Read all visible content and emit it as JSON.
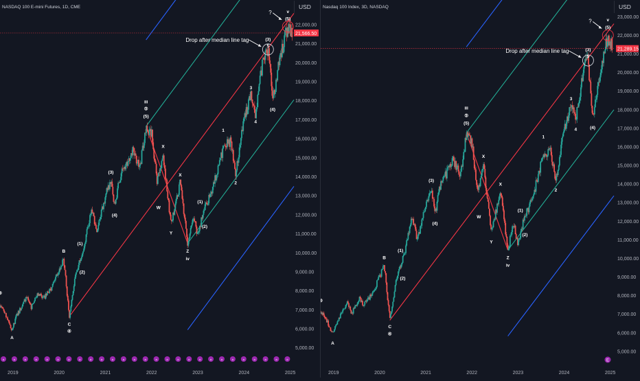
{
  "charts": [
    {
      "title": "NASDAQ 100 E-mini Futures, 1D, CME",
      "currency": "USD",
      "last_price_label": "21,566.50",
      "last_price": 21566.5,
      "annotation": "Drop after median line tag",
      "question_mark": "?"
    },
    {
      "title": "Nasdaq 100 Index, 3D, NASDAQ",
      "currency": "USD",
      "last_price_label": "21,289.15",
      "last_price": 21289.15,
      "annotation": "Drop after median line tag",
      "question_mark": "?"
    }
  ],
  "colors": {
    "background": "#131722",
    "text": "#d1d4dc",
    "candle_up": "#26a69a",
    "candle_down": "#ef5350",
    "median_line": "#f23645",
    "inner_lines": "#22ab94",
    "outer_lines": "#2962ff",
    "event_marker": "#9c27b0",
    "price_tag": "#f23645"
  },
  "chart_data": [
    {
      "type": "candlestick",
      "title": "NASDAQ 100 E-mini Futures, 1D, CME",
      "y_axis_ticks": [
        5000,
        6000,
        7000,
        8000,
        9000,
        10000,
        11000,
        12000,
        13000,
        14000,
        15000,
        16000,
        17000,
        18000,
        19000,
        20000,
        21000,
        22000
      ],
      "y_tick_labels": [
        "5,000.00",
        "6,000.00",
        "7,000.00",
        "8,000.00",
        "9,000.00",
        "10,000.00",
        "11,000.00",
        "12,000.00",
        "13,000.00",
        "14,000.00",
        "15,000.00",
        "16,000.00",
        "17,000.00",
        "18,000.00",
        "19,000.00",
        "20,000.00",
        "21,000.00",
        "22,000.00"
      ],
      "x_axis_ticks": [
        2019,
        2020,
        2021,
        2022,
        2023,
        2024,
        2025
      ],
      "x_tick_labels": [
        "2019",
        "2020",
        "2021",
        "2022",
        "2023",
        "2024",
        "2025"
      ],
      "ylim": [
        4700,
        23300
      ],
      "xlim": [
        2018.72,
        2025.08
      ],
      "price_path": [
        {
          "x": 2018.72,
          "y": 7250
        },
        {
          "x": 2018.82,
          "y": 6900
        },
        {
          "x": 2018.98,
          "y": 5950
        },
        {
          "x": 2019.08,
          "y": 6700
        },
        {
          "x": 2019.3,
          "y": 7650
        },
        {
          "x": 2019.4,
          "y": 7100
        },
        {
          "x": 2019.55,
          "y": 7900
        },
        {
          "x": 2019.65,
          "y": 7550
        },
        {
          "x": 2019.85,
          "y": 8200
        },
        {
          "x": 2020.1,
          "y": 9650
        },
        {
          "x": 2020.22,
          "y": 6650
        },
        {
          "x": 2020.35,
          "y": 8800
        },
        {
          "x": 2020.55,
          "y": 10500
        },
        {
          "x": 2020.7,
          "y": 12300
        },
        {
          "x": 2020.82,
          "y": 11050
        },
        {
          "x": 2021.0,
          "y": 13000
        },
        {
          "x": 2021.12,
          "y": 13850
        },
        {
          "x": 2021.2,
          "y": 12400
        },
        {
          "x": 2021.3,
          "y": 13850
        },
        {
          "x": 2021.45,
          "y": 14700
        },
        {
          "x": 2021.6,
          "y": 15400
        },
        {
          "x": 2021.75,
          "y": 14500
        },
        {
          "x": 2021.88,
          "y": 16650
        },
        {
          "x": 2022.0,
          "y": 16300
        },
        {
          "x": 2022.12,
          "y": 13700
        },
        {
          "x": 2022.25,
          "y": 15200
        },
        {
          "x": 2022.42,
          "y": 11500
        },
        {
          "x": 2022.62,
          "y": 13700
        },
        {
          "x": 2022.78,
          "y": 10500
        },
        {
          "x": 2022.9,
          "y": 12000
        },
        {
          "x": 2023.0,
          "y": 10900
        },
        {
          "x": 2023.15,
          "y": 12400
        },
        {
          "x": 2023.3,
          "y": 13200
        },
        {
          "x": 2023.55,
          "y": 15500
        },
        {
          "x": 2023.72,
          "y": 15900
        },
        {
          "x": 2023.82,
          "y": 14200
        },
        {
          "x": 2024.0,
          "y": 17000
        },
        {
          "x": 2024.15,
          "y": 18300
        },
        {
          "x": 2024.25,
          "y": 17350
        },
        {
          "x": 2024.42,
          "y": 20300
        },
        {
          "x": 2024.52,
          "y": 20700
        },
        {
          "x": 2024.62,
          "y": 18000
        },
        {
          "x": 2024.8,
          "y": 20500
        },
        {
          "x": 2024.95,
          "y": 21900
        },
        {
          "x": 2025.05,
          "y": 21566
        }
      ],
      "wave_labels": [
        {
          "text": "③",
          "x": 2018.72,
          "y": 7900
        },
        {
          "text": "A",
          "x": 2018.98,
          "y": 5550
        },
        {
          "text": "B",
          "x": 2020.1,
          "y": 10100
        },
        {
          "text": "C",
          "x": 2020.22,
          "y": 6250
        },
        {
          "text": "④",
          "x": 2020.22,
          "y": 5900
        },
        {
          "text": "(1)",
          "x": 2020.45,
          "y": 10500
        },
        {
          "text": "(2)",
          "x": 2020.5,
          "y": 9000
        },
        {
          "text": "(3)",
          "x": 2021.12,
          "y": 14250
        },
        {
          "text": "(4)",
          "x": 2021.2,
          "y": 12000
        },
        {
          "text": "iii",
          "x": 2021.88,
          "y": 17950
        },
        {
          "text": "⑤",
          "x": 2021.88,
          "y": 17600
        },
        {
          "text": "(5)",
          "x": 2021.88,
          "y": 17200
        },
        {
          "text": "X",
          "x": 2022.25,
          "y": 15600
        },
        {
          "text": "W",
          "x": 2022.15,
          "y": 12400
        },
        {
          "text": "X",
          "x": 2022.62,
          "y": 14100
        },
        {
          "text": "Y",
          "x": 2022.42,
          "y": 11050
        },
        {
          "text": "Z",
          "x": 2022.78,
          "y": 10100
        },
        {
          "text": "iv",
          "x": 2022.78,
          "y": 9700
        },
        {
          "text": "(1)",
          "x": 2023.05,
          "y": 12700
        },
        {
          "text": "(2)",
          "x": 2023.15,
          "y": 11400
        },
        {
          "text": "1",
          "x": 2023.55,
          "y": 16450
        },
        {
          "text": "2",
          "x": 2023.82,
          "y": 13700
        },
        {
          "text": "3",
          "x": 2024.15,
          "y": 18700
        },
        {
          "text": "4",
          "x": 2024.25,
          "y": 16900
        },
        {
          "text": "(4)",
          "x": 2024.62,
          "y": 17550
        },
        {
          "text": "(3)",
          "x": 2024.52,
          "y": 21250
        },
        {
          "text": "5",
          "x": 2024.52,
          "y": 20900
        },
        {
          "text": "(5)",
          "x": 2024.95,
          "y": 22330
        },
        {
          "text": "v",
          "x": 2024.95,
          "y": 22700
        }
      ],
      "pitchfork": {
        "pivot_high": {
          "x": 2021.88,
          "y": 16650
        },
        "pivot_low": {
          "x": 2022.78,
          "y": 10500
        },
        "median_start": {
          "x": 2020.22,
          "y": 6650
        },
        "median_end": {
          "x": 2025.08,
          "y": 22600
        }
      },
      "annotations": [
        {
          "text": "Drop after median line tag",
          "target": {
            "x": 2024.52,
            "y": 20700
          }
        },
        {
          "text": "?",
          "target": {
            "x": 2024.95,
            "y": 21900
          }
        }
      ]
    },
    {
      "type": "candlestick",
      "title": "Nasdaq 100 Index, 3D, NASDAQ",
      "y_axis_ticks": [
        5000,
        6000,
        7000,
        8000,
        9000,
        10000,
        11000,
        12000,
        13000,
        14000,
        15000,
        16000,
        17000,
        18000,
        19000,
        20000,
        21000,
        22000,
        23000
      ],
      "y_tick_labels": [
        "5,000.00",
        "6,000.00",
        "7,000.00",
        "8,000.00",
        "9,000.00",
        "10,000.00",
        "11,000.00",
        "12,000.00",
        "13,000.00",
        "14,000.00",
        "15,000.00",
        "16,000.00",
        "17,000.00",
        "18,000.00",
        "19,000.00",
        "20,000.00",
        "21,000.00",
        "22,000.00",
        "23,000.00"
      ],
      "x_axis_ticks": [
        2019,
        2020,
        2021,
        2022,
        2023,
        2024,
        2025
      ],
      "x_tick_labels": [
        "2019",
        "2020",
        "2021",
        "2022",
        "2023",
        "2024",
        "2025"
      ],
      "ylim": [
        4700,
        23900
      ],
      "xlim": [
        2018.72,
        2025.08
      ],
      "price_path": [
        {
          "x": 2018.72,
          "y": 7150
        },
        {
          "x": 2018.82,
          "y": 6850
        },
        {
          "x": 2018.98,
          "y": 5900
        },
        {
          "x": 2019.08,
          "y": 6650
        },
        {
          "x": 2019.3,
          "y": 7600
        },
        {
          "x": 2019.4,
          "y": 7050
        },
        {
          "x": 2019.55,
          "y": 7850
        },
        {
          "x": 2019.65,
          "y": 7500
        },
        {
          "x": 2019.85,
          "y": 8150
        },
        {
          "x": 2020.1,
          "y": 9600
        },
        {
          "x": 2020.22,
          "y": 6750
        },
        {
          "x": 2020.35,
          "y": 8700
        },
        {
          "x": 2020.55,
          "y": 10400
        },
        {
          "x": 2020.7,
          "y": 12200
        },
        {
          "x": 2020.82,
          "y": 11000
        },
        {
          "x": 2021.0,
          "y": 12900
        },
        {
          "x": 2021.12,
          "y": 13800
        },
        {
          "x": 2021.2,
          "y": 12300
        },
        {
          "x": 2021.3,
          "y": 13800
        },
        {
          "x": 2021.45,
          "y": 14600
        },
        {
          "x": 2021.6,
          "y": 15300
        },
        {
          "x": 2021.75,
          "y": 14400
        },
        {
          "x": 2021.88,
          "y": 16750
        },
        {
          "x": 2022.0,
          "y": 16200
        },
        {
          "x": 2022.12,
          "y": 13500
        },
        {
          "x": 2022.25,
          "y": 15100
        },
        {
          "x": 2022.42,
          "y": 11350
        },
        {
          "x": 2022.62,
          "y": 13600
        },
        {
          "x": 2022.78,
          "y": 10450
        },
        {
          "x": 2022.9,
          "y": 11900
        },
        {
          "x": 2023.0,
          "y": 10800
        },
        {
          "x": 2023.15,
          "y": 12300
        },
        {
          "x": 2023.3,
          "y": 13100
        },
        {
          "x": 2023.55,
          "y": 15600
        },
        {
          "x": 2023.72,
          "y": 15700
        },
        {
          "x": 2023.82,
          "y": 14200
        },
        {
          "x": 2024.0,
          "y": 17000
        },
        {
          "x": 2024.15,
          "y": 18200
        },
        {
          "x": 2024.25,
          "y": 17400
        },
        {
          "x": 2024.42,
          "y": 20200
        },
        {
          "x": 2024.52,
          "y": 20650
        },
        {
          "x": 2024.62,
          "y": 17500
        },
        {
          "x": 2024.8,
          "y": 20400
        },
        {
          "x": 2024.95,
          "y": 22000
        },
        {
          "x": 2025.05,
          "y": 21289
        }
      ],
      "wave_labels": [
        {
          "text": "③",
          "x": 2018.72,
          "y": 7750
        },
        {
          "text": "A",
          "x": 2018.98,
          "y": 5450
        },
        {
          "text": "B",
          "x": 2020.1,
          "y": 10050
        },
        {
          "text": "C",
          "x": 2020.22,
          "y": 6350
        },
        {
          "text": "④",
          "x": 2020.22,
          "y": 5950
        },
        {
          "text": "(1)",
          "x": 2020.45,
          "y": 10450
        },
        {
          "text": "(2)",
          "x": 2020.5,
          "y": 8950
        },
        {
          "text": "(3)",
          "x": 2021.12,
          "y": 14200
        },
        {
          "text": "(4)",
          "x": 2021.2,
          "y": 11900
        },
        {
          "text": "iii",
          "x": 2021.88,
          "y": 18100
        },
        {
          "text": "⑤",
          "x": 2021.88,
          "y": 17700
        },
        {
          "text": "(5)",
          "x": 2021.88,
          "y": 17300
        },
        {
          "text": "X",
          "x": 2022.25,
          "y": 15500
        },
        {
          "text": "W",
          "x": 2022.15,
          "y": 12250
        },
        {
          "text": "X",
          "x": 2022.62,
          "y": 14000
        },
        {
          "text": "Y",
          "x": 2022.42,
          "y": 10900
        },
        {
          "text": "Z",
          "x": 2022.78,
          "y": 10050
        },
        {
          "text": "iv",
          "x": 2022.78,
          "y": 9650
        },
        {
          "text": "(1)",
          "x": 2023.05,
          "y": 12600
        },
        {
          "text": "(2)",
          "x": 2023.15,
          "y": 11300
        },
        {
          "text": "1",
          "x": 2023.55,
          "y": 16550
        },
        {
          "text": "2",
          "x": 2023.82,
          "y": 13700
        },
        {
          "text": "3",
          "x": 2024.15,
          "y": 18600
        },
        {
          "text": "4",
          "x": 2024.25,
          "y": 16950
        },
        {
          "text": "(4)",
          "x": 2024.62,
          "y": 17050
        },
        {
          "text": "(3)",
          "x": 2024.52,
          "y": 21250
        },
        {
          "text": "5",
          "x": 2024.52,
          "y": 20900
        },
        {
          "text": "(5)",
          "x": 2024.95,
          "y": 22450
        },
        {
          "text": "v",
          "x": 2024.95,
          "y": 22850
        }
      ],
      "pitchfork": {
        "pivot_high": {
          "x": 2021.88,
          "y": 16750
        },
        "pivot_low": {
          "x": 2022.78,
          "y": 10450
        },
        "median_start": {
          "x": 2020.22,
          "y": 6750
        },
        "median_end": {
          "x": 2025.08,
          "y": 22700
        }
      },
      "annotations": [
        {
          "text": "Drop after median line tag",
          "target": {
            "x": 2024.52,
            "y": 20650
          }
        },
        {
          "text": "?",
          "target": {
            "x": 2024.95,
            "y": 22000
          }
        }
      ]
    }
  ]
}
